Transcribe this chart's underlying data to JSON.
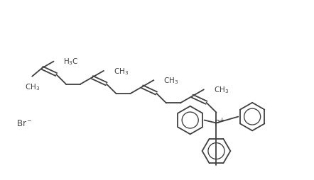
{
  "bg_color": "#ffffff",
  "line_color": "#404040",
  "line_width": 1.3,
  "text_color": "#404040",
  "font_size": 7.5,
  "fig_width": 4.42,
  "fig_height": 2.55,
  "dpi": 100
}
